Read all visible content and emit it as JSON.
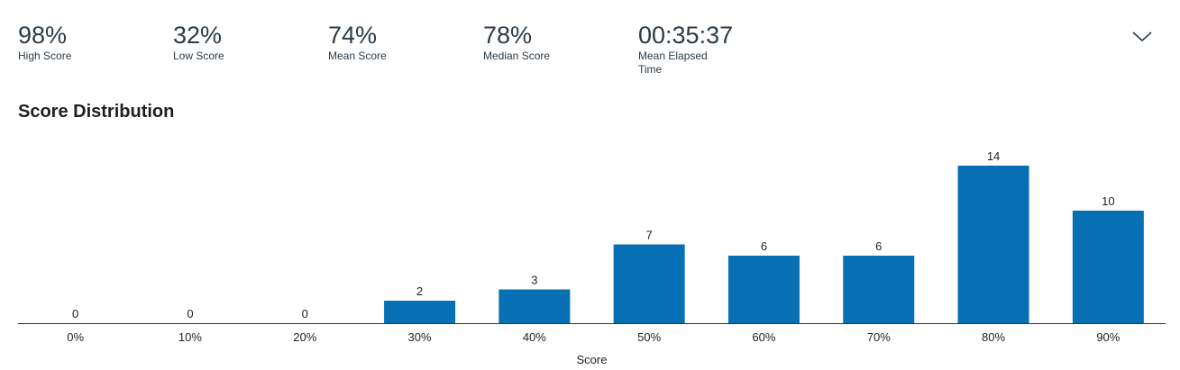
{
  "stats": [
    {
      "value": "98%",
      "label": "High Score"
    },
    {
      "value": "32%",
      "label": "Low Score"
    },
    {
      "value": "74%",
      "label": "Mean Score"
    },
    {
      "value": "78%",
      "label": "Median Score"
    },
    {
      "value": "00:35:37",
      "label": "Mean Elapsed Time"
    }
  ],
  "toggle_icon": "chevron-down-icon",
  "chart_data": {
    "type": "bar",
    "title": "Score Distribution",
    "xlabel": "Score",
    "ylabel": "",
    "categories": [
      "0%",
      "10%",
      "20%",
      "30%",
      "40%",
      "50%",
      "60%",
      "70%",
      "80%",
      "90%"
    ],
    "values": [
      0,
      0,
      0,
      2,
      3,
      7,
      6,
      6,
      14,
      10
    ],
    "ylim": [
      0,
      14
    ],
    "grid": false,
    "legend": "none",
    "bar_color": "#0770b5"
  }
}
